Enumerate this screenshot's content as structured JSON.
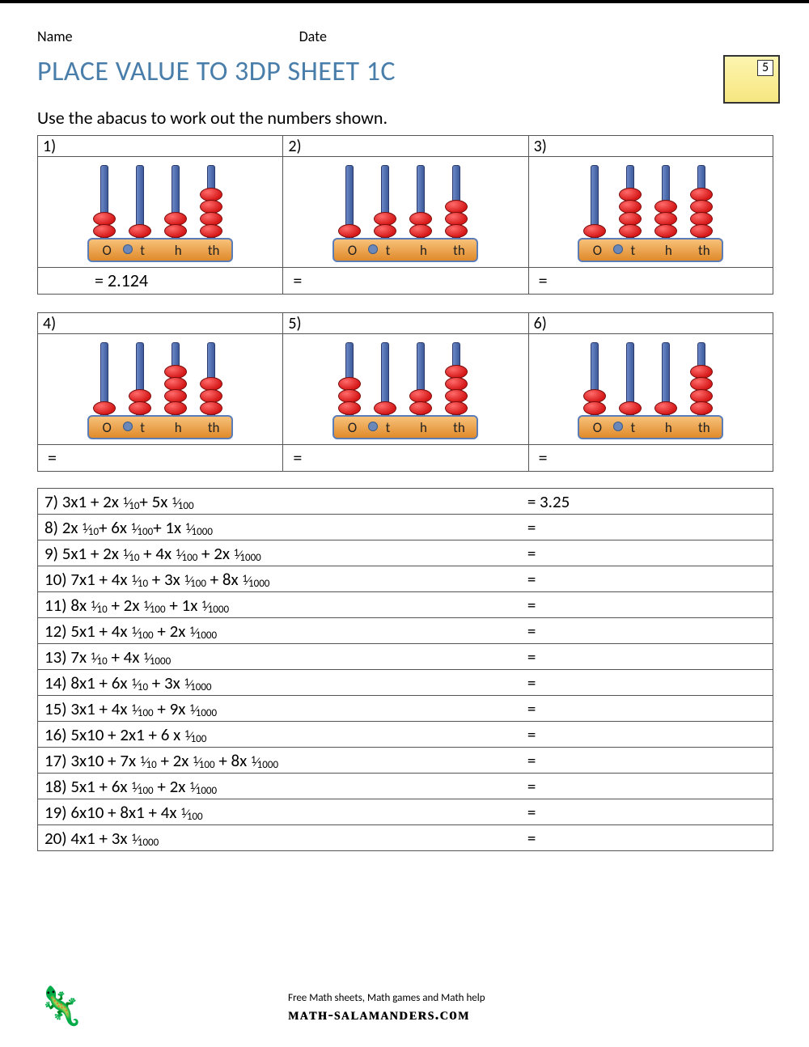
{
  "header": {
    "name_label": "Name",
    "date_label": "Date"
  },
  "badge_number": "5",
  "title": "PLACE VALUE TO 3DP SHEET 1C",
  "instruction": "Use the abacus to work out the numbers shown.",
  "rod_labels": [
    "O",
    "t",
    "h",
    "th"
  ],
  "colors": {
    "title_color": "#4a7eaa",
    "bead_color": "#e02020",
    "rod_color": "#4a6aa8",
    "base_color": "#e89a3a",
    "border_color": "#555555"
  },
  "abacus_problems": [
    {
      "num": "1)",
      "beads": [
        2,
        1,
        2,
        4
      ],
      "answer": "= 2.124",
      "answer_class": "first"
    },
    {
      "num": "2)",
      "beads": [
        1,
        2,
        2,
        3
      ],
      "answer": "="
    },
    {
      "num": "3)",
      "beads": [
        1,
        4,
        3,
        4
      ],
      "answer": "="
    },
    {
      "num": "4)",
      "beads": [
        1,
        2,
        4,
        3
      ],
      "answer": "="
    },
    {
      "num": "5)",
      "beads": [
        3,
        1,
        2,
        4
      ],
      "answer": "="
    },
    {
      "num": "6)",
      "beads": [
        2,
        1,
        1,
        4
      ],
      "answer": "="
    }
  ],
  "equation_problems": [
    {
      "q": "7) 3x1 + 2x {1/10}+ 5x {1/100}",
      "a": "= 3.25"
    },
    {
      "q": "8) 2x {1/10}+ 6x {1/100}+ 1x {1/1000}",
      "a": "="
    },
    {
      "q": "9) 5x1 + 2x {1/10} + 4x {1/100} + 2x {1/1000}",
      "a": "="
    },
    {
      "q": "10) 7x1 + 4x {1/10} + 3x {1/100} + 8x {1/1000}",
      "a": "="
    },
    {
      "q": "11) 8x {1/10} + 2x {1/100} + 1x {1/1000}",
      "a": "="
    },
    {
      "q": "12) 5x1 + 4x {1/100} + 2x {1/1000}",
      "a": "="
    },
    {
      "q": "13) 7x {1/10} + 4x {1/1000}",
      "a": "="
    },
    {
      "q": "14) 8x1 + 6x {1/10} + 3x {1/1000}",
      "a": "="
    },
    {
      "q": "15) 3x1 + 4x {1/100} + 9x {1/1000}",
      "a": "="
    },
    {
      "q": "16) 5x10 + 2x1 + 6 x {1/100}",
      "a": "="
    },
    {
      "q": "17) 3x10 + 7x {1/10} + 2x {1/100} + 8x {1/1000}",
      "a": "="
    },
    {
      "q": "18) 5x1 + 6x {1/100} + 2x {1/1000}",
      "a": "="
    },
    {
      "q": "19) 6x10 + 8x1 + 4x {1/100}",
      "a": "="
    },
    {
      "q": "20) 4x1 + 3x {1/1000}",
      "a": "="
    }
  ],
  "footer": {
    "tagline": "Free Math sheets, Math games and Math help",
    "site": "ᴍᴀᴛʜ-sᴀʟᴀᴍᴀɴᴅᴇʀs.ᴄᴏᴍ"
  }
}
